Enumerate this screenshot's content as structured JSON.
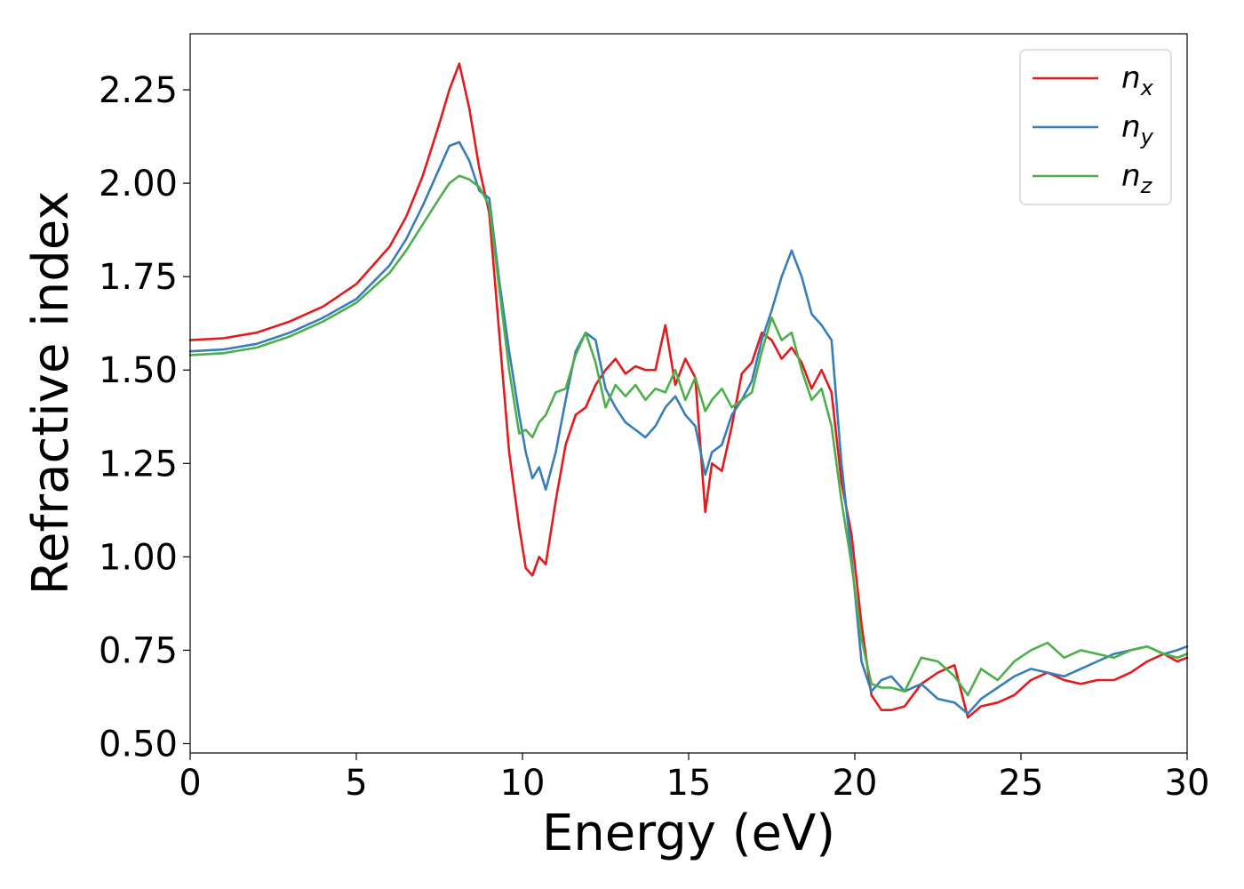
{
  "chart_data": {
    "type": "line",
    "xlabel": "Energy (eV)",
    "ylabel": "Refractive index",
    "xlim": [
      0,
      30
    ],
    "ylim": [
      0.475,
      2.4
    ],
    "xticks": [
      "0",
      "5",
      "10",
      "15",
      "20",
      "25",
      "30"
    ],
    "yticks": [
      "0.50",
      "0.75",
      "1.00",
      "1.25",
      "1.50",
      "1.75",
      "2.00",
      "2.25"
    ],
    "legend_position": "top-right",
    "grid": false,
    "x": [
      0,
      1,
      2,
      3,
      4,
      5,
      6,
      6.5,
      7,
      7.5,
      7.8,
      8.1,
      8.4,
      8.7,
      9,
      9.3,
      9.6,
      9.9,
      10.1,
      10.3,
      10.5,
      10.7,
      11,
      11.3,
      11.6,
      11.9,
      12.2,
      12.5,
      12.8,
      13.1,
      13.4,
      13.7,
      14,
      14.3,
      14.6,
      14.9,
      15.2,
      15.5,
      15.7,
      16,
      16.3,
      16.6,
      16.9,
      17.2,
      17.5,
      17.8,
      18.1,
      18.4,
      18.7,
      19,
      19.3,
      19.6,
      19.9,
      20.2,
      20.5,
      20.8,
      21.1,
      21.5,
      22,
      22.5,
      23,
      23.4,
      23.8,
      24.3,
      24.8,
      25.3,
      25.8,
      26.3,
      26.8,
      27.3,
      27.8,
      28.3,
      28.8,
      29.3,
      29.7,
      30
    ],
    "series": [
      {
        "name": "n",
        "subscript": "x",
        "color": "#e41a1c",
        "values": [
          1.58,
          1.585,
          1.6,
          1.63,
          1.67,
          1.73,
          1.83,
          1.91,
          2.02,
          2.16,
          2.25,
          2.32,
          2.2,
          2.04,
          1.92,
          1.6,
          1.28,
          1.08,
          0.97,
          0.95,
          1.0,
          0.98,
          1.15,
          1.3,
          1.38,
          1.4,
          1.46,
          1.5,
          1.53,
          1.49,
          1.51,
          1.5,
          1.5,
          1.62,
          1.46,
          1.53,
          1.48,
          1.12,
          1.25,
          1.23,
          1.35,
          1.49,
          1.52,
          1.6,
          1.58,
          1.53,
          1.56,
          1.52,
          1.45,
          1.5,
          1.44,
          1.2,
          1.06,
          0.82,
          0.63,
          0.59,
          0.59,
          0.6,
          0.66,
          0.69,
          0.71,
          0.57,
          0.6,
          0.61,
          0.63,
          0.67,
          0.69,
          0.67,
          0.66,
          0.67,
          0.67,
          0.69,
          0.72,
          0.74,
          0.72,
          0.73
        ]
      },
      {
        "name": "n",
        "subscript": "y",
        "color": "#377eb8",
        "values": [
          1.55,
          1.555,
          1.57,
          1.6,
          1.64,
          1.69,
          1.78,
          1.85,
          1.94,
          2.04,
          2.1,
          2.11,
          2.06,
          1.98,
          1.96,
          1.74,
          1.55,
          1.38,
          1.28,
          1.21,
          1.24,
          1.18,
          1.28,
          1.42,
          1.55,
          1.6,
          1.58,
          1.45,
          1.4,
          1.36,
          1.34,
          1.32,
          1.35,
          1.4,
          1.43,
          1.38,
          1.35,
          1.22,
          1.28,
          1.3,
          1.38,
          1.42,
          1.47,
          1.58,
          1.66,
          1.75,
          1.82,
          1.75,
          1.65,
          1.62,
          1.58,
          1.25,
          1.0,
          0.72,
          0.64,
          0.67,
          0.68,
          0.64,
          0.66,
          0.62,
          0.61,
          0.58,
          0.62,
          0.65,
          0.68,
          0.7,
          0.69,
          0.68,
          0.7,
          0.72,
          0.74,
          0.75,
          0.76,
          0.74,
          0.75,
          0.76
        ]
      },
      {
        "name": "n",
        "subscript": "z",
        "color": "#4daf4a",
        "values": [
          1.54,
          1.545,
          1.56,
          1.59,
          1.63,
          1.68,
          1.76,
          1.82,
          1.89,
          1.96,
          2.0,
          2.02,
          2.01,
          1.99,
          1.94,
          1.72,
          1.5,
          1.33,
          1.34,
          1.32,
          1.36,
          1.38,
          1.44,
          1.45,
          1.54,
          1.6,
          1.52,
          1.4,
          1.46,
          1.43,
          1.46,
          1.42,
          1.45,
          1.44,
          1.5,
          1.42,
          1.48,
          1.39,
          1.42,
          1.45,
          1.4,
          1.42,
          1.44,
          1.55,
          1.64,
          1.58,
          1.6,
          1.5,
          1.42,
          1.45,
          1.35,
          1.15,
          0.98,
          0.78,
          0.66,
          0.65,
          0.65,
          0.64,
          0.73,
          0.72,
          0.68,
          0.63,
          0.7,
          0.67,
          0.72,
          0.75,
          0.77,
          0.73,
          0.75,
          0.74,
          0.73,
          0.75,
          0.76,
          0.74,
          0.73,
          0.74
        ]
      }
    ]
  }
}
